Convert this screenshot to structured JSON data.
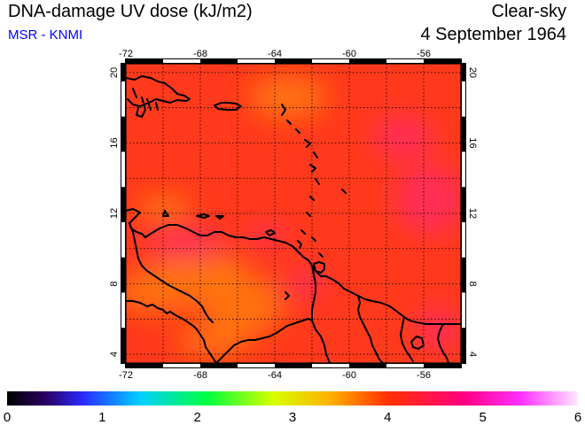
{
  "header": {
    "title": "DNA-damage UV dose (kJ/m2)",
    "credit": "MSR - KNMI",
    "sky_condition": "Clear-sky",
    "date": "4 September 1964"
  },
  "colors": {
    "credit": "#0000ff",
    "field_base": "#ff3a1c",
    "field_orange": "#ff7a10",
    "field_pink": "#ff2a62",
    "coast": "#000000",
    "grid": "#000000"
  },
  "map": {
    "lon_range": [
      -72,
      -54
    ],
    "lat_range": [
      3.5,
      20.5
    ],
    "lon_ticks": [
      -72,
      -68,
      -64,
      -60,
      -56
    ],
    "lat_ticks": [
      4,
      8,
      12,
      16,
      20
    ],
    "lon_tick_labels": [
      "-72",
      "-68",
      "-64",
      "-60",
      "-56"
    ],
    "lat_tick_labels": [
      "4",
      "8",
      "12",
      "16",
      "20"
    ],
    "gridlines": "dotted",
    "region": "Caribbean / northern South America"
  },
  "colorbar": {
    "min": 0,
    "max": 6,
    "tick_labels": [
      "0",
      "1",
      "2",
      "3",
      "4",
      "5",
      "6"
    ],
    "gradient_stops": [
      {
        "value": 0,
        "color": "#000000"
      },
      {
        "value": 0.4,
        "color": "#2a0060"
      },
      {
        "value": 0.8,
        "color": "#2a2aff"
      },
      {
        "value": 1.4,
        "color": "#00d0ff"
      },
      {
        "value": 2.1,
        "color": "#00ff40"
      },
      {
        "value": 2.8,
        "color": "#d8ff00"
      },
      {
        "value": 3.4,
        "color": "#ffb000"
      },
      {
        "value": 4.0,
        "color": "#ff3000"
      },
      {
        "value": 4.8,
        "color": "#ff0080"
      },
      {
        "value": 5.4,
        "color": "#ff30ff"
      },
      {
        "value": 6,
        "color": "#ffe8ff"
      }
    ]
  },
  "chart_data": {
    "type": "heatmap",
    "title": "DNA-damage UV dose (kJ/m2)",
    "subtitle": "4 September 1964",
    "colorbar_range": [
      0,
      6
    ],
    "xlim": [
      -72,
      -54
    ],
    "ylim": [
      3.5,
      20.5
    ],
    "typical_value": 4.2,
    "field_range": [
      3.7,
      4.8
    ]
  }
}
